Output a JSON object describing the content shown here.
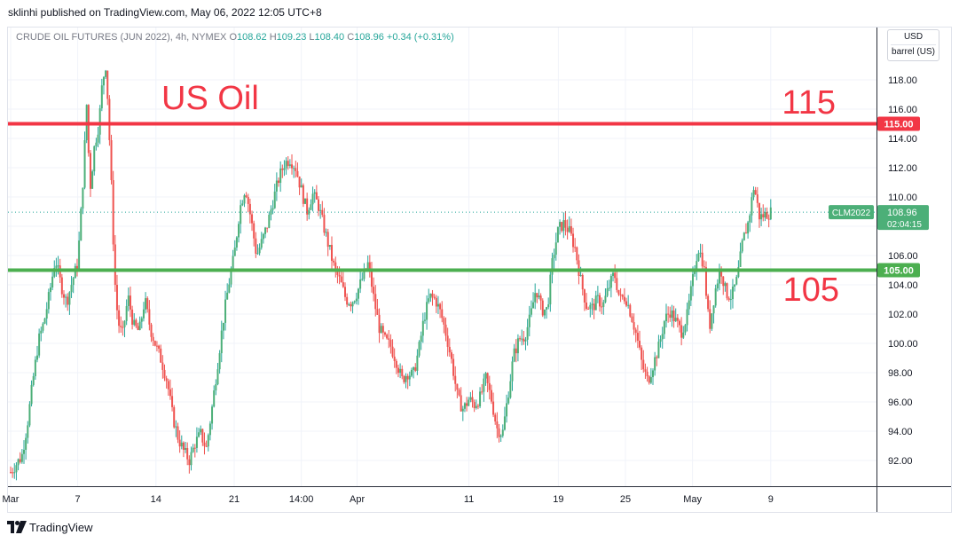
{
  "header": {
    "published": "sklinhi published on TradingView.com, May 06, 2022 12:05 UTC+8"
  },
  "legend": {
    "symbol": "CRUDE OIL FUTURES (JUN 2022), 4h, NYMEX",
    "o_label": "O",
    "o_value": "108.62",
    "h_label": "H",
    "h_value": "109.23",
    "l_label": "L",
    "l_value": "108.40",
    "c_label": "C",
    "c_value": "108.96",
    "change": "+0.34 (+0.31%)"
  },
  "scale": {
    "currency": "USD",
    "unit": "barrel (US)"
  },
  "footer": {
    "brand": "TradingView"
  },
  "colors": {
    "up": "#26a69a",
    "up_body": "#4caf78",
    "down": "#ef5350",
    "resistance": "#f23645",
    "support": "#4caf50",
    "annotation": "#f23645",
    "grid": "#f0f3fa",
    "axis_text": "#131722",
    "price_tag": "#4caf78"
  },
  "chart_data": {
    "type": "candlestick",
    "symbol": "CLM2022",
    "interval": "4h",
    "ylim": [
      90,
      121
    ],
    "y_ticks": [
      "92.00",
      "94.00",
      "96.00",
      "98.00",
      "100.00",
      "102.00",
      "104.00",
      "106.00",
      "108.00",
      "110.00",
      "112.00",
      "114.00",
      "116.00",
      "118.00"
    ],
    "x_ticks": [
      {
        "label": "Mar",
        "day": 1
      },
      {
        "label": "7",
        "day": 7
      },
      {
        "label": "14",
        "day": 14
      },
      {
        "label": "21",
        "day": 21
      },
      {
        "label": "14:00",
        "day": 27
      },
      {
        "label": "Apr",
        "day": 32
      },
      {
        "label": "11",
        "day": 42
      },
      {
        "label": "19",
        "day": 50
      },
      {
        "label": "25",
        "day": 56
      },
      {
        "label": "May",
        "day": 62
      },
      {
        "label": "9",
        "day": 69
      }
    ],
    "last_price": "108.96",
    "last_label": "CLM2022",
    "countdown": "02:04:15",
    "horizontal_lines": [
      {
        "name": "resistance",
        "value": 115.0,
        "label": "115.00"
      },
      {
        "name": "support",
        "value": 105.0,
        "label": "105.00"
      }
    ],
    "annotations": [
      {
        "name": "title-annotation",
        "text": "US Oil"
      },
      {
        "name": "resistance-annotation",
        "text": "115"
      },
      {
        "name": "support-annotation",
        "text": "105"
      }
    ],
    "price_path": [
      [
        1,
        91.2
      ],
      [
        2,
        92.3
      ],
      [
        2.5,
        94.5
      ],
      [
        3,
        97.5
      ],
      [
        3.5,
        100.2
      ],
      [
        4,
        101.5
      ],
      [
        4.5,
        103.5
      ],
      [
        5,
        105.8
      ],
      [
        5.5,
        104.0
      ],
      [
        6,
        102.8
      ],
      [
        6.5,
        104.2
      ],
      [
        7,
        105.5
      ],
      [
        7.2,
        107.8
      ],
      [
        7.5,
        111.5
      ],
      [
        7.8,
        116.3
      ],
      [
        8.1,
        110.5
      ],
      [
        8.5,
        113.5
      ],
      [
        8.9,
        115.0
      ],
      [
        9.2,
        117.8
      ],
      [
        9.5,
        119.0
      ],
      [
        9.7,
        116.5
      ],
      [
        10,
        111.0
      ],
      [
        10.3,
        104.5
      ],
      [
        10.6,
        101.5
      ],
      [
        11,
        100.5
      ],
      [
        11.5,
        103.2
      ],
      [
        12,
        101.2
      ],
      [
        12.5,
        100.8
      ],
      [
        13,
        103.0
      ],
      [
        13.5,
        101.0
      ],
      [
        14,
        99.8
      ],
      [
        14.5,
        98.8
      ],
      [
        15,
        97.4
      ],
      [
        15.5,
        95.0
      ],
      [
        16,
        93.5
      ],
      [
        16.5,
        92.6
      ],
      [
        17,
        92.0
      ],
      [
        17.5,
        93.2
      ],
      [
        18,
        93.8
      ],
      [
        18.5,
        92.8
      ],
      [
        19,
        95.5
      ],
      [
        19.5,
        98.5
      ],
      [
        20,
        101.5
      ],
      [
        20.5,
        104.0
      ],
      [
        21,
        106.0
      ],
      [
        21.5,
        109.2
      ],
      [
        22,
        110.7
      ],
      [
        22.5,
        108.5
      ],
      [
        23,
        106.0
      ],
      [
        23.5,
        107.0
      ],
      [
        24,
        108.2
      ],
      [
        24.5,
        109.8
      ],
      [
        25,
        111.3
      ],
      [
        25.5,
        112.3
      ],
      [
        26,
        112.6
      ],
      [
        26.5,
        112.0
      ],
      [
        27,
        110.5
      ],
      [
        27.5,
        109.0
      ],
      [
        28,
        110.2
      ],
      [
        28.5,
        109.5
      ],
      [
        29,
        108.0
      ],
      [
        29.5,
        106.5
      ],
      [
        30,
        105.0
      ],
      [
        30.5,
        104.2
      ],
      [
        31,
        103.0
      ],
      [
        31.5,
        102.8
      ],
      [
        32,
        103.5
      ],
      [
        32.5,
        104.5
      ],
      [
        33,
        105.5
      ],
      [
        33.5,
        103.0
      ],
      [
        34,
        101.0
      ],
      [
        34.5,
        100.2
      ],
      [
        35,
        99.8
      ],
      [
        35.5,
        98.8
      ],
      [
        36,
        97.5
      ],
      [
        36.5,
        98.0
      ],
      [
        37,
        97.8
      ],
      [
        37.5,
        99.5
      ],
      [
        38,
        101.8
      ],
      [
        38.5,
        103.2
      ],
      [
        39,
        103.0
      ],
      [
        39.5,
        102.0
      ],
      [
        40,
        100.5
      ],
      [
        40.5,
        98.6
      ],
      [
        41,
        96.2
      ],
      [
        41.5,
        95.5
      ],
      [
        42,
        96.2
      ],
      [
        42.5,
        95.8
      ],
      [
        43,
        96.3
      ],
      [
        43.5,
        97.6
      ],
      [
        44,
        96.2
      ],
      [
        44.5,
        94.2
      ],
      [
        45,
        93.8
      ],
      [
        45.5,
        96.5
      ],
      [
        46,
        99.2
      ],
      [
        46.5,
        100.3
      ],
      [
        47,
        100.5
      ],
      [
        47.5,
        101.8
      ],
      [
        48,
        103.8
      ],
      [
        48.5,
        102.3
      ],
      [
        49,
        102.3
      ],
      [
        49.5,
        105.8
      ],
      [
        50,
        107.8
      ],
      [
        50.5,
        108.2
      ],
      [
        51,
        107.6
      ],
      [
        51.5,
        106.5
      ],
      [
        52,
        104.3
      ],
      [
        52.5,
        102.6
      ],
      [
        53,
        102.4
      ],
      [
        53.5,
        103.0
      ],
      [
        54,
        102.6
      ],
      [
        54.5,
        103.8
      ],
      [
        55,
        104.8
      ],
      [
        55.5,
        103.0
      ],
      [
        56,
        103.2
      ],
      [
        56.5,
        102.0
      ],
      [
        57,
        100.5
      ],
      [
        57.5,
        98.5
      ],
      [
        58,
        97.4
      ],
      [
        58.5,
        98.6
      ],
      [
        59,
        99.8
      ],
      [
        59.5,
        101.6
      ],
      [
        60,
        102.2
      ],
      [
        60.5,
        101.5
      ],
      [
        61,
        100.8
      ],
      [
        61.5,
        101.8
      ],
      [
        62,
        104.2
      ],
      [
        62.5,
        106.6
      ],
      [
        63,
        105.4
      ],
      [
        63.5,
        101.0
      ],
      [
        64,
        103.5
      ],
      [
        64.5,
        105.2
      ],
      [
        65,
        103.4
      ],
      [
        65.5,
        103.2
      ],
      [
        66,
        104.4
      ],
      [
        66.5,
        107.0
      ],
      [
        67,
        108.3
      ],
      [
        67.5,
        110.8
      ],
      [
        68,
        108.6
      ],
      [
        68.5,
        108.8
      ],
      [
        69,
        108.96
      ]
    ],
    "xlim": [
      1,
      70
    ]
  }
}
